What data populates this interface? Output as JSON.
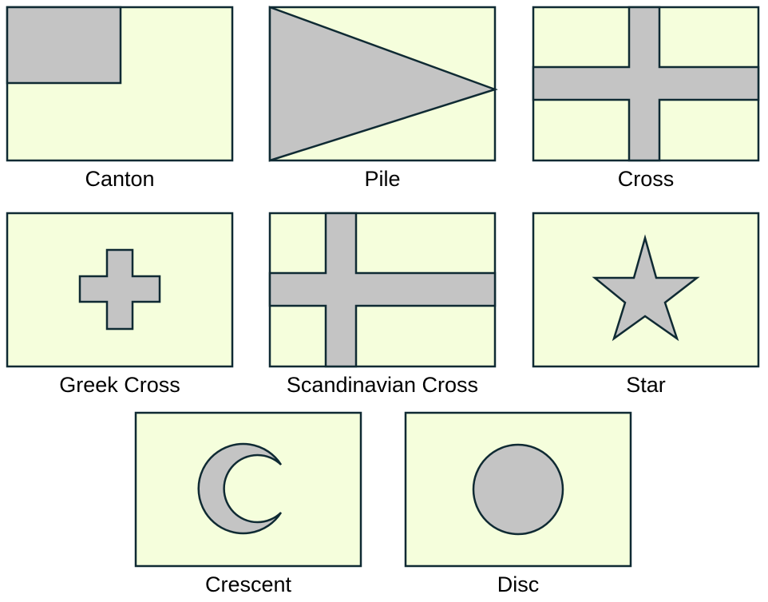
{
  "colors": {
    "field": "#f5fedc",
    "charge": "#c4c4c4",
    "outline": "#0f2a33",
    "text": "#000000"
  },
  "flags": [
    {
      "label": "Canton",
      "icon": "canton-flag-icon"
    },
    {
      "label": "Pile",
      "icon": "pile-flag-icon"
    },
    {
      "label": "Cross",
      "icon": "cross-flag-icon"
    },
    {
      "label": "Greek Cross",
      "icon": "greek-cross-flag-icon"
    },
    {
      "label": "Scandinavian Cross",
      "icon": "scandinavian-cross-flag-icon"
    },
    {
      "label": "Star",
      "icon": "star-flag-icon"
    },
    {
      "label": "Crescent",
      "icon": "crescent-flag-icon"
    },
    {
      "label": "Disc",
      "icon": "disc-flag-icon"
    }
  ]
}
